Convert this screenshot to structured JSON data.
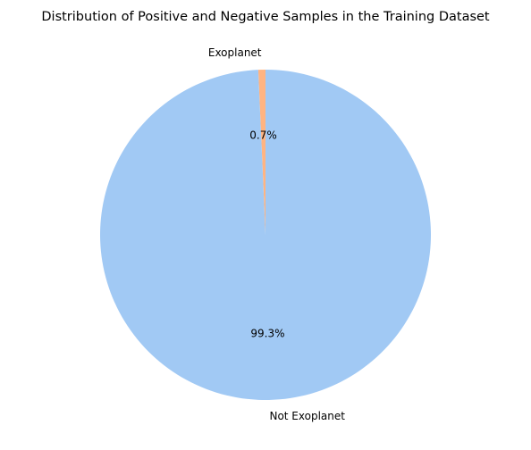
{
  "chart_data": {
    "type": "pie",
    "title": "Distribution of Positive and Negative Samples in the Training Dataset",
    "start_angle_deg": 90,
    "direction": "counterclockwise",
    "slices": [
      {
        "label": "Exoplanet",
        "value": 0.7,
        "pct_label": "0.7%",
        "color": "#ffb482"
      },
      {
        "label": "Not Exoplanet",
        "value": 99.3,
        "pct_label": "99.3%",
        "color": "#a1c9f4"
      }
    ]
  }
}
